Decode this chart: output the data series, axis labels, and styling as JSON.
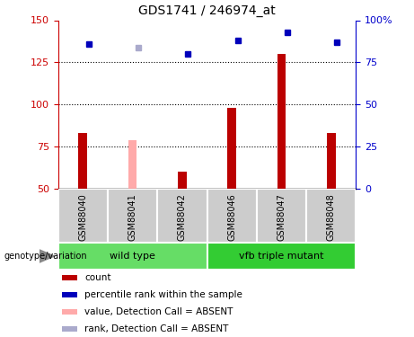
{
  "title": "GDS1741 / 246974_at",
  "samples": [
    "GSM88040",
    "GSM88041",
    "GSM88042",
    "GSM88046",
    "GSM88047",
    "GSM88048"
  ],
  "groups": [
    {
      "name": "wild type",
      "indices": [
        0,
        1,
        2
      ],
      "color": "#66DD66"
    },
    {
      "name": "vfb triple mutant",
      "indices": [
        3,
        4,
        5
      ],
      "color": "#33CC33"
    }
  ],
  "count_values": [
    83,
    null,
    60,
    98,
    130,
    83
  ],
  "count_absent_values": [
    null,
    79,
    null,
    null,
    null,
    null
  ],
  "percentile_values": [
    86,
    null,
    80,
    88,
    93,
    87
  ],
  "percentile_absent_values": [
    null,
    84,
    null,
    null,
    null,
    null
  ],
  "ylim_left": [
    50,
    150
  ],
  "ylim_right": [
    0,
    100
  ],
  "yticks_left": [
    50,
    75,
    100,
    125,
    150
  ],
  "yticks_right": [
    0,
    25,
    50,
    75,
    100
  ],
  "ytick_labels_right": [
    "0",
    "25",
    "50",
    "75",
    "100%"
  ],
  "bar_width": 0.18,
  "count_color": "#BB0000",
  "count_absent_color": "#FFAAAA",
  "percentile_color": "#0000BB",
  "percentile_absent_color": "#AAAACC",
  "marker_size": 5,
  "legend_items": [
    {
      "label": "count",
      "color": "#BB0000"
    },
    {
      "label": "percentile rank within the sample",
      "color": "#0000BB"
    },
    {
      "label": "value, Detection Call = ABSENT",
      "color": "#FFAAAA"
    },
    {
      "label": "rank, Detection Call = ABSENT",
      "color": "#AAAACC"
    }
  ],
  "genotype_label": "genotype/variation",
  "grid_color": "black",
  "background_color": "#ffffff",
  "sample_area_color": "#CCCCCC",
  "left_axis_color": "#CC0000",
  "right_axis_color": "#0000CC"
}
